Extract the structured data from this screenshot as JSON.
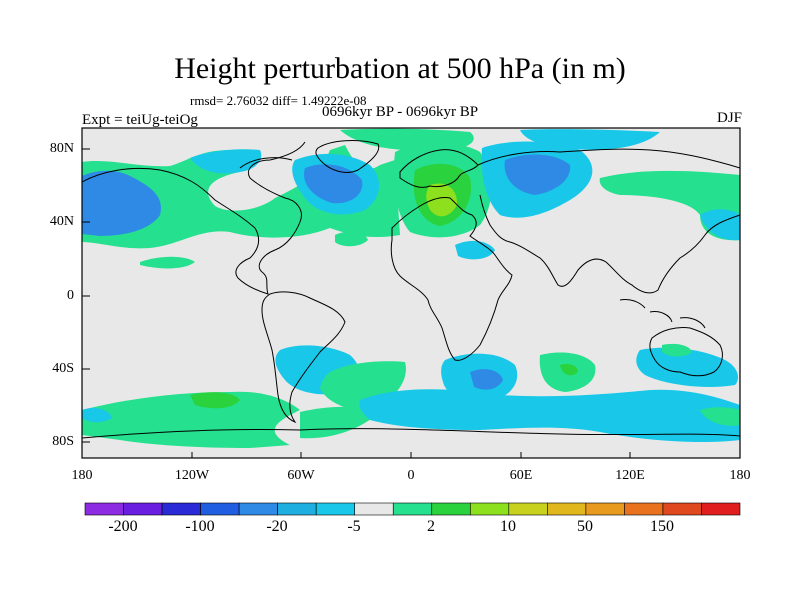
{
  "header": {
    "title": "Height perturbation at 500 hPa (in m)",
    "stats": "rmsd= 2.76032 diff= 1.49222e-08",
    "experiment": "Expt = teiUg-teiOg",
    "period": "0696kyr BP - 0696kyr BP",
    "season": "DJF"
  },
  "axes": {
    "lat_labels": [
      "80N",
      "40N",
      "0",
      "40S",
      "80S"
    ],
    "lon_labels": [
      "180",
      "120W",
      "60W",
      "0",
      "60E",
      "120E",
      "180"
    ]
  },
  "colorbar": {
    "labels": [
      "-200",
      "-100",
      "-20",
      "-5",
      "2",
      "10",
      "50",
      "150"
    ],
    "colors": [
      "#8c2be2",
      "#6a1fe0",
      "#2a2ad6",
      "#1f5ee0",
      "#2f8ae6",
      "#1faee0",
      "#19c8e8",
      "#e8e8e8",
      "#25e08e",
      "#2ad23e",
      "#8ce01e",
      "#c8d21e",
      "#e0b81e",
      "#e89a1e",
      "#e8721e",
      "#e0481e",
      "#e01e1e"
    ]
  },
  "legend_colors": {
    "background": "#e8e8e8",
    "blue_light": "#19c8e8",
    "blue_mid": "#2f8ae6",
    "green_light": "#25e08e",
    "green_mid": "#2ad23e",
    "yellow_green": "#8ce01e"
  }
}
